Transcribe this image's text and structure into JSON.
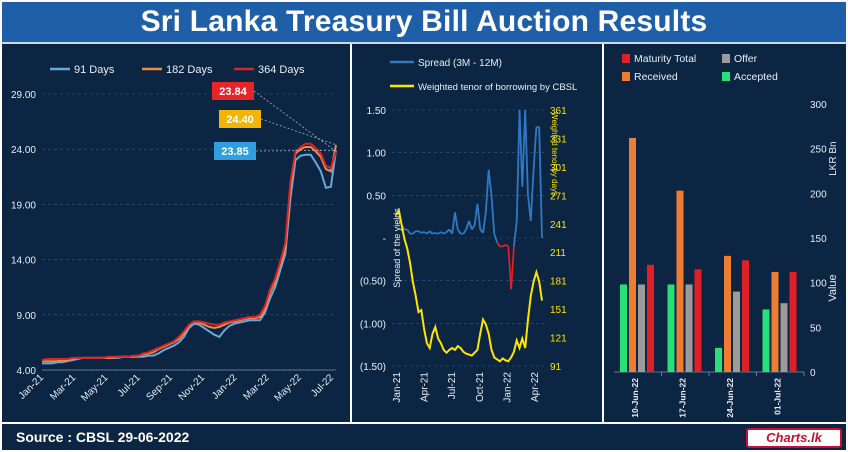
{
  "title": "Sri Lanka Treasury Bill Auction Results",
  "source": "Source : CBSL 29-06-2022",
  "logo": "Charts.lk",
  "colors": {
    "panel": "#0c2542",
    "title_bar": "#1f5fa8",
    "grid": "#2f5a8a",
    "axis_text": "#e8eef6"
  },
  "chart_data": [
    {
      "type": "line",
      "legend": [
        {
          "name": "91 Days",
          "color": "#6aa7dc"
        },
        {
          "name": "182 Days",
          "color": "#f08a3c"
        },
        {
          "name": "364 Days",
          "color": "#d7252b"
        }
      ],
      "xticks": [
        "Jan-21",
        "Mar-21",
        "May-21",
        "Jul-21",
        "Sep-21",
        "Nov-21",
        "Jan-22",
        "Mar-22",
        "May-22",
        "Jul-22"
      ],
      "yticks": [
        "29.00",
        "24.00",
        "19.00",
        "14.00",
        "9.00",
        "4.00"
      ],
      "ylim": [
        4,
        29
      ],
      "series": [
        {
          "name": "91 Days",
          "color": "#6aa7dc",
          "values": [
            4.6,
            4.6,
            4.6,
            4.7,
            4.7,
            4.8,
            4.9,
            5.0,
            5.1,
            5.1,
            5.1,
            5.1,
            5.1,
            5.1,
            5.1,
            5.1,
            5.2,
            5.2,
            5.2,
            5.2,
            5.2,
            5.3,
            5.3,
            5.5,
            5.8,
            6.0,
            6.2,
            6.5,
            7.0,
            7.8,
            8.2,
            8.1,
            7.8,
            7.5,
            7.2,
            7.0,
            7.6,
            8.0,
            8.2,
            8.3,
            8.4,
            8.5,
            8.5,
            8.5,
            9.2,
            10.5,
            11.5,
            13.0,
            14.5,
            19.5,
            23.0,
            23.4,
            23.5,
            23.5,
            22.8,
            22.0,
            20.5,
            20.6,
            23.9
          ]
        },
        {
          "name": "182 Days",
          "color": "#f08a3c",
          "values": [
            4.8,
            4.8,
            4.8,
            4.8,
            4.9,
            4.9,
            5.0,
            5.1,
            5.1,
            5.1,
            5.1,
            5.1,
            5.1,
            5.1,
            5.1,
            5.2,
            5.2,
            5.2,
            5.2,
            5.3,
            5.4,
            5.5,
            5.6,
            5.9,
            6.1,
            6.3,
            6.5,
            6.8,
            7.3,
            8.0,
            8.4,
            8.3,
            8.1,
            7.9,
            7.8,
            7.9,
            8.1,
            8.3,
            8.4,
            8.5,
            8.6,
            8.7,
            8.7,
            8.8,
            9.5,
            11.0,
            12.0,
            13.5,
            15.0,
            20.5,
            23.6,
            24.0,
            24.2,
            24.2,
            23.8,
            23.3,
            22.2,
            22.0,
            24.4
          ]
        },
        {
          "name": "364 Days",
          "color": "#d7252b",
          "values": [
            4.9,
            5.0,
            5.0,
            5.0,
            5.0,
            5.0,
            5.1,
            5.1,
            5.1,
            5.1,
            5.1,
            5.1,
            5.1,
            5.2,
            5.2,
            5.2,
            5.2,
            5.2,
            5.3,
            5.3,
            5.5,
            5.6,
            5.8,
            6.0,
            6.2,
            6.4,
            6.6,
            7.0,
            7.5,
            8.1,
            8.4,
            8.4,
            8.3,
            8.2,
            8.1,
            8.1,
            8.3,
            8.4,
            8.5,
            8.6,
            8.7,
            8.8,
            8.8,
            9.0,
            9.8,
            11.3,
            12.3,
            13.8,
            15.5,
            21.0,
            23.8,
            24.2,
            24.5,
            24.5,
            24.1,
            23.6,
            22.5,
            22.3,
            23.8
          ]
        }
      ],
      "annotations": [
        {
          "text": "23.84",
          "color": "#e5252a",
          "series": "364 Days"
        },
        {
          "text": "24.40",
          "color": "#f5b400",
          "series": "182 Days"
        },
        {
          "text": "23.85",
          "color": "#2e9fe0",
          "series": "91 Days"
        }
      ]
    },
    {
      "type": "line",
      "legend": [
        {
          "name": "Spread (3M - 12M)",
          "color": "#2f78c4"
        },
        {
          "name": "Weighted tenor of borrowing by CBSL",
          "color": "#ffe400"
        }
      ],
      "xticks": [
        "Jan-21",
        "Apr-21",
        "Jul-21",
        "Oct-21",
        "Jan-22",
        "Apr-22"
      ],
      "yticks_left": [
        "1.50",
        "1.00",
        "0.50",
        "-",
        "(0.50)",
        "(1.00)",
        "(1.50)"
      ],
      "ylim_left": [
        -1.5,
        1.5
      ],
      "yticks_right": [
        "361",
        "331",
        "301",
        "271",
        "241",
        "211",
        "181",
        "151",
        "121",
        "91"
      ],
      "ylim_right": [
        91,
        361
      ],
      "ylabel_left": "Spread of the yields",
      "ylabel_right": "Weighted tenor by days",
      "spread": [
        0.3,
        0.35,
        0.15,
        0.1,
        0.1,
        0.05,
        0.05,
        0.08,
        0.08,
        0.06,
        0.07,
        0.05,
        0.08,
        0.05,
        0.06,
        0.05,
        0.07,
        0.05,
        0.07,
        0.1,
        0.05,
        0.3,
        0.1,
        0.05,
        0.05,
        0.1,
        0.2,
        0.1,
        0.15,
        0.4,
        0.1,
        0.06,
        0.3,
        0.8,
        0.5,
        0.05,
        -0.05,
        -0.1,
        -0.1,
        -0.08,
        -0.1,
        -0.6,
        -0.1,
        0.2,
        1.5,
        0.6,
        1.5,
        0.5,
        0.2,
        0.8,
        1.3,
        1.3,
        0.0
      ],
      "tenor": [
        250,
        255,
        240,
        225,
        215,
        200,
        180,
        165,
        148,
        150,
        130,
        115,
        110,
        125,
        132,
        120,
        115,
        108,
        105,
        108,
        110,
        108,
        112,
        110,
        106,
        104,
        103,
        102,
        105,
        108,
        125,
        140,
        135,
        125,
        108,
        100,
        98,
        96,
        99,
        97,
        96,
        100,
        106,
        118,
        110,
        120,
        110,
        140,
        165,
        180,
        190,
        180,
        160
      ]
    },
    {
      "type": "bar",
      "legend": [
        {
          "name": "Maturity Total",
          "color": "#e11f26"
        },
        {
          "name": "Offer",
          "color": "#9b9b9b"
        },
        {
          "name": "Received",
          "color": "#ee7d31"
        },
        {
          "name": "Accepted",
          "color": "#28e07a"
        }
      ],
      "categories": [
        "10-Jun-22",
        "17-Jun-22",
        "24-Jun-22",
        "01-Jul-22"
      ],
      "yticks": [
        "300",
        "250",
        "200",
        "150",
        "100",
        "50",
        "0"
      ],
      "ylim": [
        0,
        300
      ],
      "ylabel": "Value",
      "unit": "LKR Bn",
      "series": [
        {
          "name": "Accepted",
          "color": "#28e07a",
          "values": [
            98,
            98,
            27,
            70
          ]
        },
        {
          "name": "Received",
          "color": "#ee7d31",
          "values": [
            262,
            203,
            130,
            112
          ]
        },
        {
          "name": "Offer",
          "color": "#9b9b9b",
          "values": [
            98,
            98,
            90,
            77
          ]
        },
        {
          "name": "Maturity Total",
          "color": "#e11f26",
          "values": [
            120,
            115,
            125,
            112
          ]
        }
      ]
    }
  ]
}
